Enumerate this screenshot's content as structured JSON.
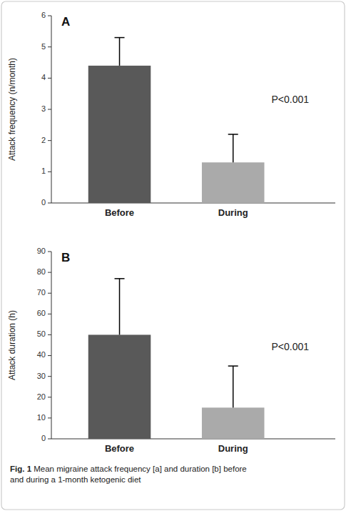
{
  "chart_data": [
    {
      "type": "bar",
      "title": "A",
      "categories": [
        "Before",
        "During"
      ],
      "values": [
        4.4,
        1.3
      ],
      "errors": [
        0.9,
        0.9
      ],
      "colors": [
        "#595959",
        "#aaaaaa"
      ],
      "ylabel": "Attack frequency (n/month)",
      "ylim": [
        0,
        6
      ],
      "yticks": [
        0,
        1,
        2,
        3,
        4,
        5,
        6
      ],
      "grid": false,
      "annotations": [
        {
          "text": "P<0.001",
          "y": 3.3
        }
      ]
    },
    {
      "type": "bar",
      "title": "B",
      "categories": [
        "Before",
        "During"
      ],
      "values": [
        50,
        15
      ],
      "errors": [
        27,
        20
      ],
      "colors": [
        "#595959",
        "#aaaaaa"
      ],
      "ylabel": "Attack duration (h)",
      "ylim": [
        0,
        90
      ],
      "yticks": [
        0,
        10,
        20,
        30,
        40,
        50,
        60,
        70,
        80,
        90
      ],
      "grid": false,
      "annotations": [
        {
          "text": "P<0.001",
          "y": 44
        }
      ]
    }
  ],
  "caption": [
    "Fig. 1",
    " Mean migraine attack frequency [a] and duration [b] before\nand during a 1-month ketogenic diet"
  ]
}
